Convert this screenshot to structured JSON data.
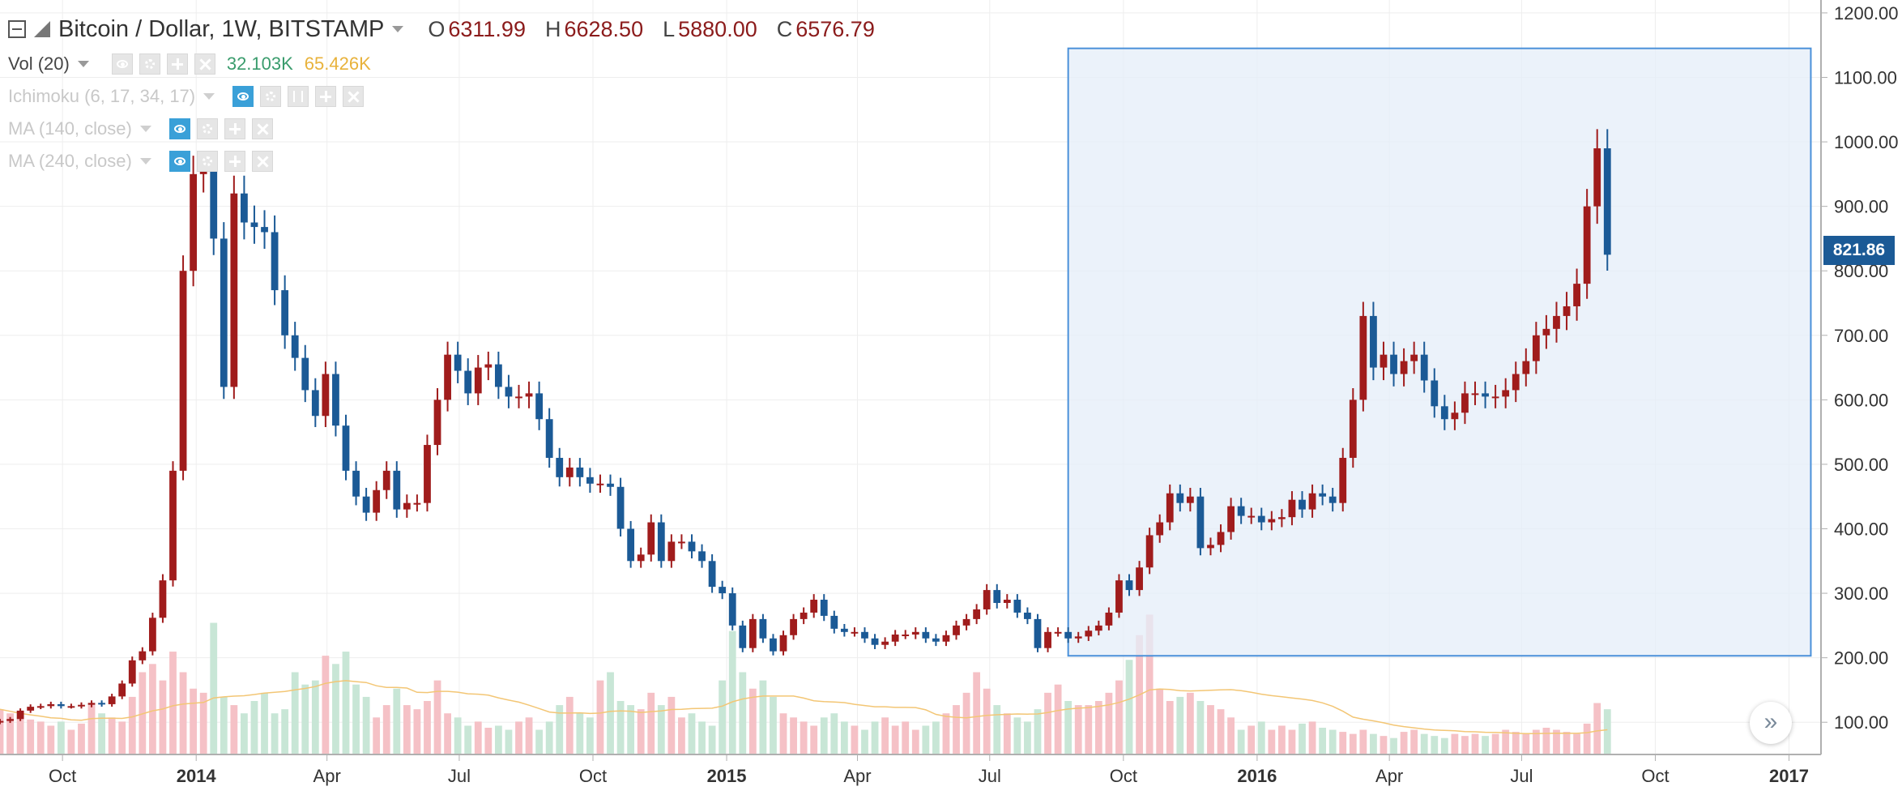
{
  "header": {
    "title": "Bitcoin / Dollar, 1W, BITSTAMP",
    "ohlc": [
      {
        "label": "O",
        "value": "6311.99"
      },
      {
        "label": "H",
        "value": "6628.50"
      },
      {
        "label": "L",
        "value": "5880.00"
      },
      {
        "label": "C",
        "value": "6576.79"
      }
    ]
  },
  "indicators": {
    "volume": {
      "name": "Vol (20)",
      "value_a": "32.103K",
      "value_b": "65.426K"
    },
    "ichimoku": {
      "name": "Ichimoku (6, 17, 34, 17)"
    },
    "ma140": {
      "name": "MA (140, close)"
    },
    "ma240": {
      "name": "MA (240, close)"
    }
  },
  "icons": [
    "collapse-icon",
    "symbol-icon",
    "eye-icon",
    "gear-icon",
    "plus-icon",
    "close-icon",
    "brackets-icon",
    "scroll-right-icon"
  ],
  "price_tag": {
    "value": "821.86",
    "color": "#1b5a96"
  },
  "scroll_button": {
    "glyph": "»"
  },
  "colors": {
    "up": "#a01c1c",
    "down": "#1b5a96",
    "vol_up": "#f5c1c6",
    "vol_down": "#c8e6d6",
    "vol_ma": "#f3c675",
    "selection_fill": "#e4eef8",
    "selection_stroke": "#4a90d9",
    "grid": "#eeeeee",
    "axis_text": "#333333"
  },
  "chart_data": {
    "type": "candlestick",
    "title": "Bitcoin / Dollar, 1W, BITSTAMP",
    "x_ticks": [
      {
        "label": "Oct",
        "date": "2013-10-01",
        "bold": false
      },
      {
        "label": "2014",
        "date": "2014-01-01",
        "bold": true
      },
      {
        "label": "Apr",
        "date": "2014-04-01",
        "bold": false
      },
      {
        "label": "Jul",
        "date": "2014-07-01",
        "bold": false
      },
      {
        "label": "Oct",
        "date": "2014-10-01",
        "bold": false
      },
      {
        "label": "2015",
        "date": "2015-01-01",
        "bold": true
      },
      {
        "label": "Apr",
        "date": "2015-04-01",
        "bold": false
      },
      {
        "label": "Jul",
        "date": "2015-07-01",
        "bold": false
      },
      {
        "label": "Oct",
        "date": "2015-10-01",
        "bold": false
      },
      {
        "label": "2016",
        "date": "2016-01-01",
        "bold": true
      },
      {
        "label": "Apr",
        "date": "2016-04-01",
        "bold": false
      },
      {
        "label": "Jul",
        "date": "2016-07-01",
        "bold": false
      },
      {
        "label": "Oct",
        "date": "2016-10-01",
        "bold": false
      },
      {
        "label": "2017",
        "date": "2017-01-01",
        "bold": true
      }
    ],
    "y_ticks": [
      "100.00",
      "200.00",
      "300.00",
      "400.00",
      "500.00",
      "600.00",
      "700.00",
      "800.00",
      "900.00",
      "1000.00",
      "1100.00",
      "1200.00"
    ],
    "ylim": [
      50,
      1220
    ],
    "xlim": [
      "2013-08-19",
      "2017-01-23"
    ],
    "first_week": "2013-08-19",
    "week_step_days": 7,
    "grid": true,
    "selection": {
      "x_start": "2015-08-24",
      "x_end": "2017-01-16",
      "y_low": 203,
      "y_high": 1145
    },
    "close": [
      102,
      105,
      118,
      124,
      125,
      128,
      125,
      125,
      127,
      130,
      128,
      140,
      160,
      196,
      210,
      262,
      320,
      490,
      800,
      950,
      955,
      850,
      620,
      920,
      875,
      868,
      860,
      770,
      700,
      665,
      615,
      575,
      640,
      560,
      490,
      450,
      425,
      460,
      490,
      430,
      440,
      440,
      530,
      600,
      670,
      645,
      610,
      650,
      655,
      620,
      605,
      605,
      610,
      570,
      510,
      480,
      495,
      480,
      470,
      470,
      465,
      400,
      350,
      360,
      410,
      350,
      380,
      380,
      365,
      350,
      310,
      300,
      250,
      215,
      260,
      230,
      210,
      235,
      260,
      270,
      290,
      265,
      245,
      240,
      240,
      230,
      220,
      225,
      236,
      236,
      240,
      230,
      225,
      235,
      250,
      260,
      275,
      305,
      285,
      290,
      270,
      260,
      215,
      240,
      240,
      230,
      233,
      242,
      250,
      270,
      320,
      305,
      340,
      390,
      410,
      455,
      440,
      450,
      370,
      375,
      395,
      435,
      420,
      420,
      410,
      415,
      418,
      445,
      430,
      455,
      450,
      440,
      510,
      600,
      730,
      650,
      670,
      640,
      660,
      670,
      630,
      590,
      570,
      580,
      610,
      610,
      605,
      605,
      615,
      640,
      660,
      700,
      710,
      730,
      745,
      780,
      900,
      990,
      825
    ],
    "volume": [
      110,
      100,
      90,
      85,
      80,
      70,
      80,
      60,
      75,
      120,
      100,
      90,
      80,
      140,
      200,
      220,
      180,
      250,
      200,
      160,
      150,
      320,
      140,
      120,
      100,
      130,
      150,
      100,
      110,
      200,
      170,
      180,
      240,
      220,
      250,
      170,
      140,
      90,
      120,
      160,
      120,
      110,
      130,
      180,
      100,
      90,
      70,
      80,
      65,
      70,
      60,
      80,
      90,
      60,
      80,
      120,
      140,
      100,
      90,
      180,
      200,
      130,
      120,
      110,
      150,
      120,
      140,
      90,
      100,
      80,
      70,
      180,
      300,
      200,
      160,
      180,
      140,
      100,
      90,
      80,
      70,
      90,
      100,
      80,
      70,
      60,
      80,
      90,
      70,
      80,
      60,
      70,
      80,
      100,
      120,
      150,
      200,
      160,
      120,
      100,
      90,
      80,
      110,
      150,
      170,
      130,
      120,
      120,
      130,
      150,
      180,
      230,
      290,
      340,
      160,
      130,
      140,
      150,
      130,
      120,
      110,
      90,
      60,
      70,
      80,
      60,
      70,
      60,
      75,
      80,
      65,
      60,
      55,
      50,
      60,
      50,
      45,
      40,
      55,
      60,
      50,
      45,
      40,
      50,
      45,
      50,
      45,
      50,
      60,
      55,
      50,
      60,
      65,
      60,
      55,
      50,
      75,
      125,
      110
    ],
    "volume_axis_max": 650
  }
}
